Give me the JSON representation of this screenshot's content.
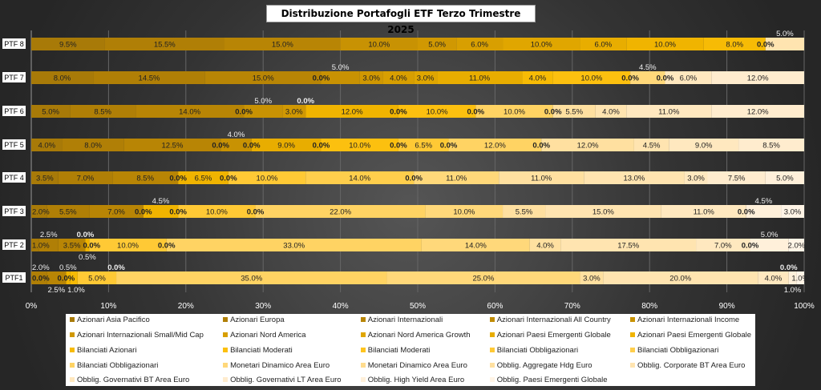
{
  "chart_data": {
    "type": "bar",
    "orientation": "horizontal",
    "stacked": "percent",
    "title": "Distribuzione Portafogli ETF Terzo Trimestre 2025",
    "categories": [
      "PTF 8",
      "PTF 7",
      "PTF 6",
      "PTF 5",
      "PTF 4",
      "PTF 3",
      "PTF 2",
      "PTF1"
    ],
    "x_ticks": [
      "0%",
      "10%",
      "20%",
      "30%",
      "40%",
      "50%",
      "60%",
      "70%",
      "80%",
      "90%",
      "100%"
    ],
    "xlim": [
      0,
      100
    ],
    "grid": true,
    "legend_position": "bottom",
    "series": [
      {
        "name": "Azionari Asia Pacifico",
        "color": "#a87a08",
        "values": [
          9.5,
          8,
          5,
          4,
          3.5,
          2,
          1,
          0
        ]
      },
      {
        "name": "Azionari Europa",
        "color": "#b07f06",
        "values": [
          15.5,
          14.5,
          8.5,
          8,
          7,
          5.5,
          2.5,
          2
        ]
      },
      {
        "name": "Azionari Internazionali",
        "color": "#b88505",
        "values": [
          15,
          15,
          14,
          12.5,
          8.5,
          7,
          3.5,
          2.5
        ]
      },
      {
        "name": "Azionari Internazionali All Country",
        "color": "#c08b04",
        "values": [
          null,
          0,
          0,
          0,
          null,
          null,
          null,
          null
        ]
      },
      {
        "name": "Azionari Internazionali Income",
        "color": "#c89203",
        "values": [
          10,
          5,
          5,
          4,
          null,
          null,
          null,
          null
        ]
      },
      {
        "name": "Azionari Internazionali Small/Mid Cap",
        "color": "#d09802",
        "values": [
          5,
          3,
          3,
          0,
          0,
          0,
          0,
          0
        ]
      },
      {
        "name": "Azionari Nord America",
        "color": "#d89f01",
        "values": [
          6,
          4,
          0,
          null,
          null,
          null,
          null,
          null
        ]
      },
      {
        "name": "Azionari Nord America Growth",
        "color": "#e0a600",
        "values": [
          10,
          3,
          null,
          null,
          null,
          null,
          null,
          null
        ]
      },
      {
        "name": "Azionari Paesi Emergenti Globale",
        "color": "#e8ad00",
        "values": [
          6,
          11,
          null,
          9,
          null,
          null,
          null,
          null
        ]
      },
      {
        "name": "Azionari Paesi Emergenti Globale",
        "color": "#f0b400",
        "values": [
          10,
          null,
          12,
          0,
          6.5,
          4.5,
          0.5,
          0.5
        ]
      },
      {
        "name": "Bilanciati Azionari",
        "color": "#f7bb05",
        "values": [
          8,
          4,
          0,
          null,
          0,
          0,
          0,
          1
        ]
      },
      {
        "name": "Bilanciati Moderati",
        "color": "#fcc00f",
        "values": [
          0,
          10,
          10,
          10,
          null,
          null,
          null,
          null
        ]
      },
      {
        "name": "Bilanciati Moderati",
        "color": "#ffc41e",
        "values": [
          null,
          0,
          0,
          0,
          null,
          null,
          null,
          null
        ]
      },
      {
        "name": "Bilanciati Obbligazionari",
        "color": "#ffc935",
        "values": [
          null,
          null,
          null,
          6.5,
          10,
          10,
          10,
          5
        ]
      },
      {
        "name": "Bilanciati Obbligazionari",
        "color": "#ffce4c",
        "values": [
          null,
          null,
          null,
          0,
          14,
          0,
          0,
          0
        ]
      },
      {
        "name": "Bilanciati Obbligazionari",
        "color": "#ffd363",
        "values": [
          null,
          null,
          10,
          12,
          0,
          22,
          33,
          35
        ]
      },
      {
        "name": "Monetari Dinamico Area Euro",
        "color": "#ffd87a",
        "values": [
          null,
          4.5,
          0,
          0,
          11,
          10,
          14,
          25
        ]
      },
      {
        "name": "Monetari Dinamico Area Euro",
        "color": "#ffdc8e",
        "values": [
          null,
          0,
          null,
          null,
          null,
          null,
          null,
          null
        ]
      },
      {
        "name": "Obblig. Aggregate Hdg Euro",
        "color": "#ffe0a0",
        "values": [
          null,
          null,
          5.5,
          12,
          11,
          5.5,
          4,
          3
        ]
      },
      {
        "name": "Obblig. Corporate BT Area Euro",
        "color": "#ffe4b0",
        "values": [
          5,
          null,
          4,
          4.5,
          13,
          15,
          17.5,
          20
        ]
      },
      {
        "name": "Obblig. Governativi BT Area Euro",
        "color": "#ffe8bf",
        "values": [
          null,
          6,
          11,
          9,
          3,
          11,
          7,
          4
        ]
      },
      {
        "name": "Obblig. Governativi LT Area Euro",
        "color": "#ffecce",
        "values": [
          null,
          12,
          12,
          8.5,
          7.5,
          0,
          0,
          0
        ]
      },
      {
        "name": "Obblig. High Yield Area Euro",
        "color": "#fff0da",
        "values": [
          null,
          null,
          null,
          null,
          5,
          4.5,
          5,
          1
        ]
      },
      {
        "name": "Obblig. Paesi Emergenti Globale",
        "color": "#fff4e6",
        "values": [
          null,
          null,
          null,
          null,
          null,
          3,
          2,
          1
        ]
      }
    ]
  }
}
